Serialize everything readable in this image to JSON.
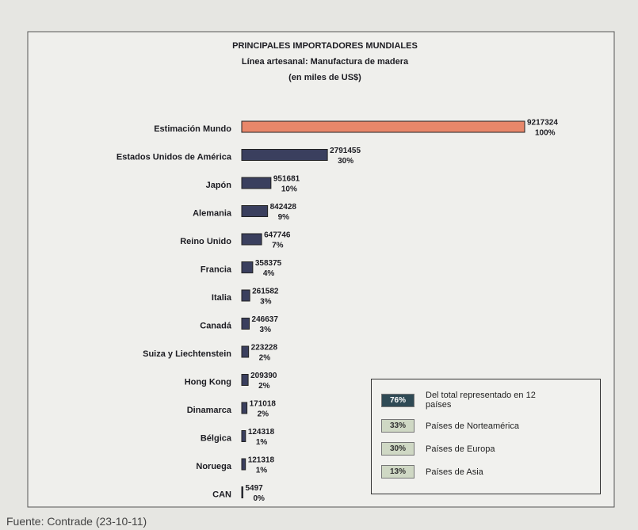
{
  "chart_data": {
    "type": "barh",
    "title": "PRINCIPALES IMPORTADORES MUNDIALES",
    "subtitle": "Línea artesanal: Manufactura de madera",
    "unit_label": "(en miles de US$)",
    "categories": [
      "Estimación Mundo",
      "Estados Unidos de América",
      "Japón",
      "Alemania",
      "Reino Unido",
      "Francia",
      "Italia",
      "Canadá",
      "Suiza y Liechtenstein",
      "Hong Kong",
      "Dinamarca",
      "Bélgica",
      "Noruega",
      "CAN"
    ],
    "values": [
      9217324,
      2791455,
      951681,
      842428,
      647746,
      358375,
      261582,
      246637,
      223228,
      209390,
      171018,
      124318,
      121318,
      5497
    ],
    "percent_labels": [
      "100%",
      "30%",
      "10%",
      "9%",
      "7%",
      "4%",
      "3%",
      "3%",
      "2%",
      "2%",
      "2%",
      "1%",
      "1%",
      "0%"
    ],
    "colors": [
      "#e8876a",
      "#3a3f5e",
      "#3a3f5e",
      "#3a3f5e",
      "#3a3f5e",
      "#3a3f5e",
      "#3a3f5e",
      "#3a3f5e",
      "#3a3f5e",
      "#3a3f5e",
      "#3a3f5e",
      "#3a3f5e",
      "#3a3f5e",
      "#3a3f5e"
    ],
    "xlim": [
      0,
      9217324
    ],
    "legend": [
      {
        "badge": "76%",
        "text": "Del total representado en 12 países",
        "color": "#2f4a55"
      },
      {
        "badge": "33%",
        "text": "Países de Norteamérica",
        "color": "#cfd8c4"
      },
      {
        "badge": "30%",
        "text": "Países de Europa",
        "color": "#cfd8c4"
      },
      {
        "badge": "13%",
        "text": "Países de Asia",
        "color": "#cfd8c4"
      }
    ],
    "source": "Fuente: Contrade  (23-10-11)"
  }
}
